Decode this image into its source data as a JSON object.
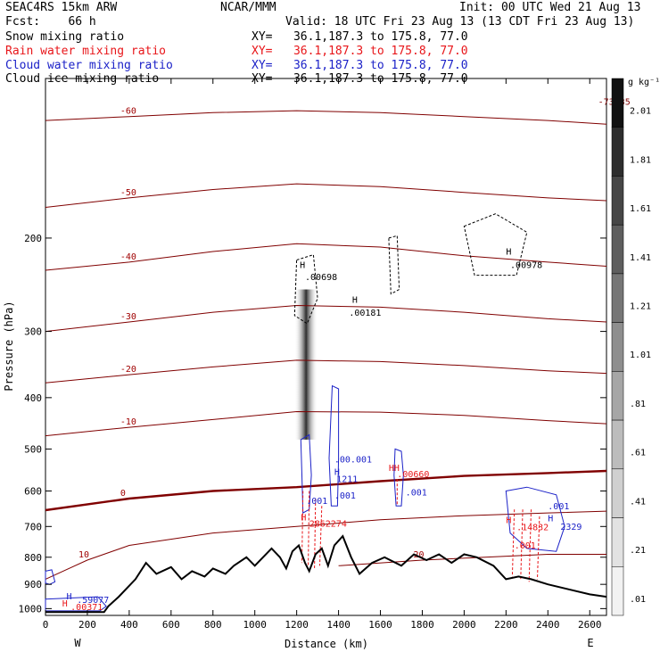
{
  "header": {
    "model": "SEAC4RS 15km ARW",
    "center": "NCAR/MMM",
    "init": "Init: 00 UTC Wed 21 Aug 13",
    "fcst": "Fcst:    66 h",
    "valid": "Valid: 18 UTC Fri 23 Aug 13 (13 CDT Fri 23 Aug 13)",
    "fields": [
      {
        "label": "Snow mixing ratio",
        "xy": "XY=   36.1,187.3 to 175.8, 77.0",
        "color": "#000000"
      },
      {
        "label": "Rain water mixing ratio",
        "xy": "XY=   36.1,187.3 to 175.8, 77.0",
        "color": "#e8161a"
      },
      {
        "label": "Cloud water mixing ratio",
        "xy": "XY=   36.1,187.3 to 175.8, 77.0",
        "color": "#1c22c8"
      },
      {
        "label": "Cloud ice mixing ratio",
        "xy": "XY=   36.1,187.3 to 175.8, 77.0",
        "color": "#000000"
      }
    ]
  },
  "chart_data": {
    "type": "cross-section",
    "xlabel": "Distance (km)",
    "ylabel": "Pressure (hPa)",
    "xlim": [
      0,
      2680
    ],
    "ylim": [
      100,
      1030
    ],
    "y_scale": "log",
    "x_ticks": [
      0,
      200,
      400,
      600,
      800,
      1000,
      1200,
      1400,
      1600,
      1800,
      2000,
      2200,
      2400,
      2600
    ],
    "y_ticks": [
      200,
      300,
      400,
      500,
      600,
      700,
      800,
      900,
      1000
    ],
    "end_labels": {
      "left": "W",
      "right": "E"
    },
    "colorbar": {
      "unit": "g kg⁻¹",
      "labels": [
        "2.01",
        "1.81",
        "1.61",
        "1.41",
        "1.21",
        "1.01",
        ".81",
        ".61",
        ".41",
        ".21",
        ".01"
      ],
      "colors": [
        "#111111",
        "#2d2d2d",
        "#464646",
        "#5e5e5e",
        "#767676",
        "#8e8e8e",
        "#a6a6a6",
        "#bcbcbc",
        "#d0d0d0",
        "#e2e2e2",
        "#f2f2f2"
      ]
    },
    "temperature_contours": [
      {
        "value": -60,
        "label": "-60",
        "points": [
          [
            0,
            120
          ],
          [
            400,
            118
          ],
          [
            800,
            116
          ],
          [
            1200,
            115
          ],
          [
            1600,
            116
          ],
          [
            2000,
            118
          ],
          [
            2400,
            120
          ],
          [
            2680,
            122
          ]
        ]
      },
      {
        "value": -50,
        "label": "-50",
        "points": [
          [
            0,
            175
          ],
          [
            400,
            168
          ],
          [
            800,
            162
          ],
          [
            1200,
            158
          ],
          [
            1600,
            160
          ],
          [
            2000,
            164
          ],
          [
            2400,
            168
          ],
          [
            2680,
            170
          ]
        ]
      },
      {
        "value": -40,
        "label": "-40",
        "points": [
          [
            0,
            230
          ],
          [
            400,
            222
          ],
          [
            800,
            212
          ],
          [
            1200,
            205
          ],
          [
            1600,
            208
          ],
          [
            2000,
            216
          ],
          [
            2400,
            222
          ],
          [
            2680,
            226
          ]
        ]
      },
      {
        "value": -30,
        "label": "-30",
        "points": [
          [
            0,
            300
          ],
          [
            400,
            288
          ],
          [
            800,
            276
          ],
          [
            1200,
            268
          ],
          [
            1600,
            270
          ],
          [
            2000,
            276
          ],
          [
            2400,
            284
          ],
          [
            2680,
            288
          ]
        ]
      },
      {
        "value": -20,
        "label": "-20",
        "points": [
          [
            0,
            375
          ],
          [
            400,
            362
          ],
          [
            800,
            350
          ],
          [
            1200,
            340
          ],
          [
            1600,
            342
          ],
          [
            2000,
            348
          ],
          [
            2400,
            356
          ],
          [
            2680,
            360
          ]
        ]
      },
      {
        "value": -10,
        "label": "-10",
        "points": [
          [
            0,
            472
          ],
          [
            400,
            455
          ],
          [
            800,
            440
          ],
          [
            1200,
            425
          ],
          [
            1600,
            426
          ],
          [
            2000,
            432
          ],
          [
            2400,
            442
          ],
          [
            2680,
            448
          ]
        ]
      },
      {
        "value": 0,
        "label": "0",
        "points": [
          [
            0,
            652
          ],
          [
            400,
            620
          ],
          [
            800,
            600
          ],
          [
            1200,
            590
          ],
          [
            1600,
            575
          ],
          [
            2000,
            562
          ],
          [
            2400,
            555
          ],
          [
            2680,
            550
          ]
        ]
      },
      {
        "value": 10,
        "label": "10",
        "points": [
          [
            0,
            880
          ],
          [
            200,
            810
          ],
          [
            400,
            760
          ],
          [
            800,
            720
          ],
          [
            1200,
            700
          ],
          [
            1600,
            680
          ],
          [
            2000,
            668
          ],
          [
            2400,
            660
          ],
          [
            2680,
            655
          ]
        ]
      },
      {
        "value": 20,
        "label": "20",
        "points": [
          [
            1400,
            830
          ],
          [
            1800,
            810
          ],
          [
            2100,
            800
          ],
          [
            2400,
            790
          ],
          [
            2680,
            790
          ]
        ]
      }
    ],
    "cloud_ice_snow_shading": {
      "x": [
        1190,
        1300
      ],
      "top": 250,
      "bottom": 480
    },
    "terrain": [
      [
        0,
        1015
      ],
      [
        280,
        1015
      ],
      [
        300,
        990
      ],
      [
        350,
        950
      ],
      [
        430,
        880
      ],
      [
        480,
        820
      ],
      [
        530,
        860
      ],
      [
        600,
        835
      ],
      [
        650,
        880
      ],
      [
        700,
        850
      ],
      [
        760,
        870
      ],
      [
        800,
        840
      ],
      [
        860,
        860
      ],
      [
        900,
        830
      ],
      [
        960,
        800
      ],
      [
        1000,
        830
      ],
      [
        1080,
        770
      ],
      [
        1120,
        800
      ],
      [
        1150,
        840
      ],
      [
        1180,
        780
      ],
      [
        1210,
        760
      ],
      [
        1240,
        820
      ],
      [
        1260,
        850
      ],
      [
        1290,
        790
      ],
      [
        1320,
        770
      ],
      [
        1350,
        830
      ],
      [
        1380,
        760
      ],
      [
        1420,
        730
      ],
      [
        1460,
        800
      ],
      [
        1500,
        860
      ],
      [
        1560,
        820
      ],
      [
        1620,
        800
      ],
      [
        1700,
        830
      ],
      [
        1760,
        790
      ],
      [
        1820,
        810
      ],
      [
        1880,
        790
      ],
      [
        1940,
        820
      ],
      [
        2000,
        790
      ],
      [
        2060,
        800
      ],
      [
        2140,
        830
      ],
      [
        2200,
        880
      ],
      [
        2260,
        870
      ],
      [
        2320,
        880
      ],
      [
        2400,
        900
      ],
      [
        2500,
        920
      ],
      [
        2600,
        940
      ],
      [
        2680,
        950
      ]
    ],
    "annotations": [
      {
        "text": "-73.35",
        "x": 2640,
        "y": 112,
        "color": "#800000"
      },
      {
        "text": "H",
        "x": 1215,
        "y": 228,
        "color": "#000000"
      },
      {
        "text": ".00698",
        "x": 1240,
        "y": 240,
        "color": "#000000"
      },
      {
        "text": "H",
        "x": 1465,
        "y": 265,
        "color": "#000000"
      },
      {
        "text": ".00181",
        "x": 1450,
        "y": 280,
        "color": "#000000"
      },
      {
        "text": "H",
        "x": 2200,
        "y": 215,
        "color": "#000000"
      },
      {
        "text": ".00978",
        "x": 2220,
        "y": 228,
        "color": "#000000"
      },
      {
        "text": ".00.001",
        "x": 1380,
        "y": 530,
        "color": "#1c22c8"
      },
      {
        "text": "H",
        "x": 1380,
        "y": 560,
        "color": "#1c22c8"
      },
      {
        "text": "1211",
        "x": 1390,
        "y": 577,
        "color": "#1c22c8"
      },
      {
        "text": "HH",
        "x": 1640,
        "y": 550,
        "color": "#e8161a"
      },
      {
        "text": ".00660",
        "x": 1680,
        "y": 565,
        "color": "#e8161a"
      },
      {
        "text": ".001",
        "x": 1720,
        "y": 612,
        "color": "#1c22c8"
      },
      {
        "text": ".001",
        "x": 1380,
        "y": 620,
        "color": "#1c22c8"
      },
      {
        "text": ".001",
        "x": 1245,
        "y": 635,
        "color": "#1c22c8"
      },
      {
        "text": "H",
        "x": 1220,
        "y": 682,
        "color": "#e8161a"
      },
      {
        "text": "2862274",
        "x": 1260,
        "y": 700,
        "color": "#e8161a"
      },
      {
        "text": ".001",
        "x": 2400,
        "y": 650,
        "color": "#1c22c8"
      },
      {
        "text": "H",
        "x": 2200,
        "y": 690,
        "color": "#e8161a"
      },
      {
        "text": ".14832",
        "x": 2250,
        "y": 712,
        "color": "#e8161a"
      },
      {
        "text": "H",
        "x": 2400,
        "y": 685,
        "color": "#1c22c8"
      },
      {
        "text": "2329",
        "x": 2460,
        "y": 710,
        "color": "#1c22c8"
      },
      {
        "text": ".001",
        "x": 2240,
        "y": 770,
        "color": "#e8161a"
      },
      {
        "text": "H",
        "x": 100,
        "y": 960,
        "color": "#1c22c8"
      },
      {
        "text": ".59077",
        "x": 150,
        "y": 975,
        "color": "#1c22c8"
      },
      {
        "text": "H",
        "x": 80,
        "y": 990,
        "color": "#e8161a"
      },
      {
        "text": ".00371",
        "x": 120,
        "y": 1007,
        "color": "#e8161a"
      }
    ]
  }
}
